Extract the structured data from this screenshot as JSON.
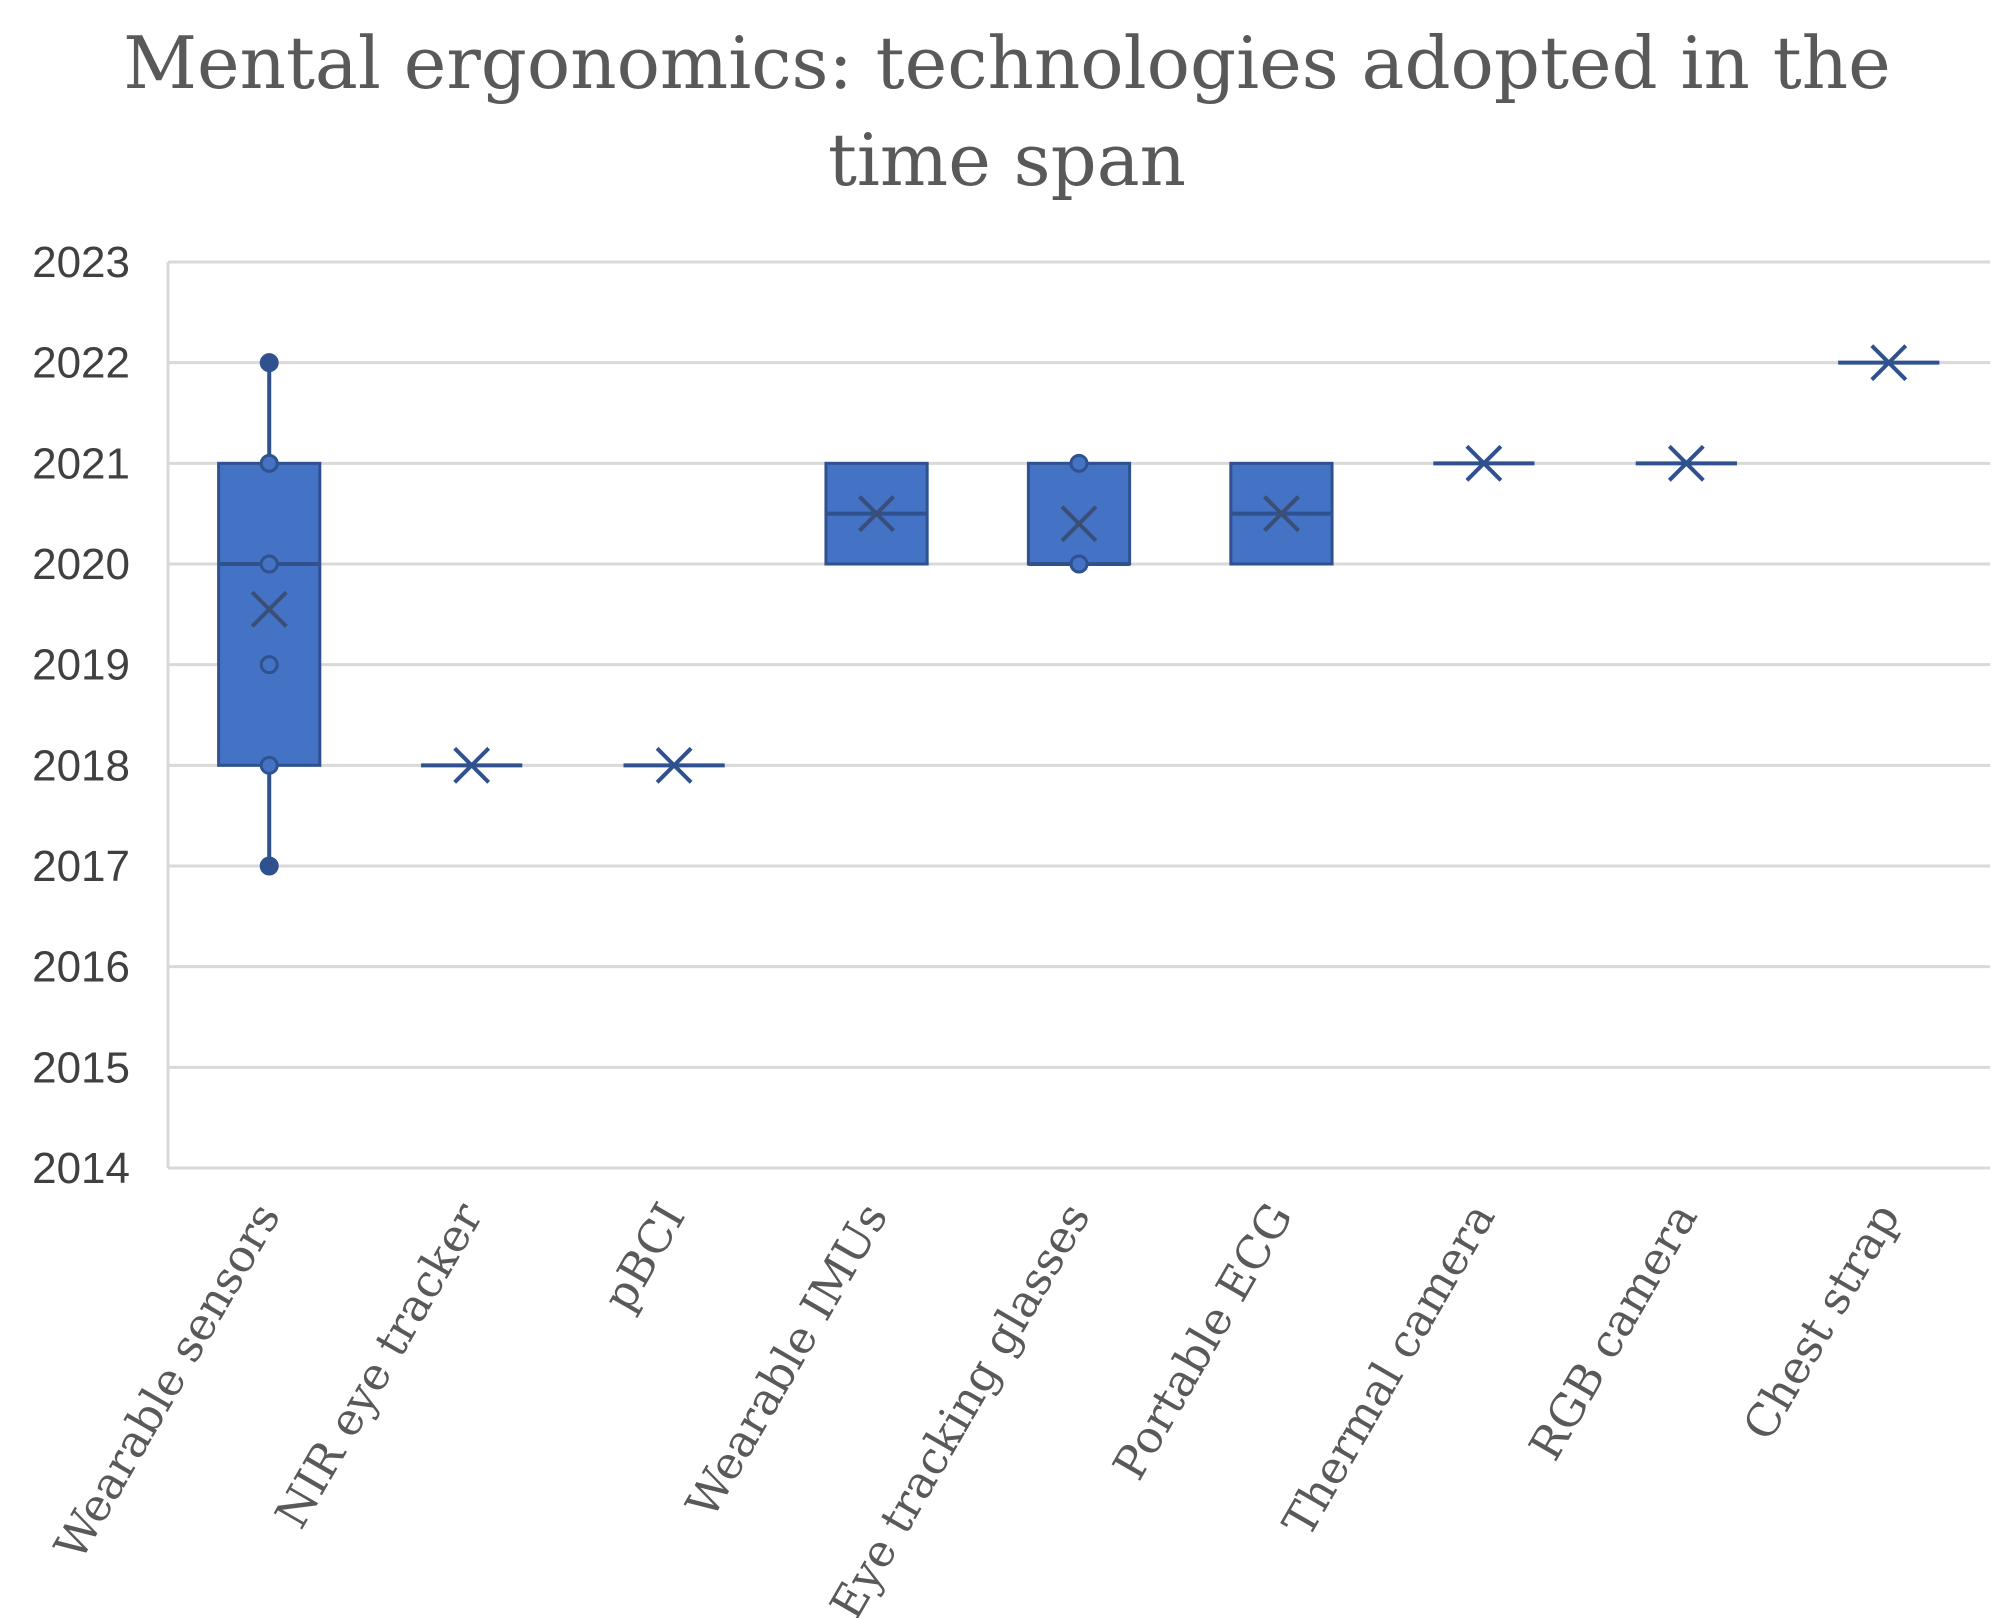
{
  "chart_data": {
    "type": "box",
    "title_lines": [
      "Mental ergonomics: technologies adopted in the",
      "time span"
    ],
    "xlabel": "",
    "ylabel": "",
    "ylim": [
      2014,
      2023
    ],
    "yticks": [
      "2014",
      "2015",
      "2016",
      "2017",
      "2018",
      "2019",
      "2020",
      "2021",
      "2022",
      "2023"
    ],
    "grid": true,
    "legend": "none",
    "color": "#4472c4",
    "edge_color": "#2f528f",
    "categories": [
      "Wearable sensors",
      "NIR eye tracker",
      "pBCI",
      "Wearable IMUs",
      "Eye tracking glasses",
      "Portable ECG",
      "Thermal camera",
      "RGB camera",
      "Chest strap"
    ],
    "boxes": [
      {
        "min": 2017,
        "q1": 2018,
        "median": 2020,
        "q3": 2021,
        "max": 2022,
        "mean": 2019.55,
        "points": [
          2017,
          2018,
          2019,
          2020,
          2021,
          2022
        ]
      },
      {
        "min": 2018,
        "q1": 2018,
        "median": 2018,
        "q3": 2018,
        "max": 2018,
        "mean": 2018,
        "points": []
      },
      {
        "min": 2018,
        "q1": 2018,
        "median": 2018,
        "q3": 2018,
        "max": 2018,
        "mean": 2018,
        "points": []
      },
      {
        "min": 2020,
        "q1": 2020,
        "median": 2020.5,
        "q3": 2021,
        "max": 2021,
        "mean": 2020.5,
        "points": []
      },
      {
        "min": 2020,
        "q1": 2020,
        "median": 2020,
        "q3": 2021,
        "max": 2021,
        "mean": 2020.4,
        "points": [
          2020,
          2021
        ]
      },
      {
        "min": 2020,
        "q1": 2020,
        "median": 2020.5,
        "q3": 2021,
        "max": 2021,
        "mean": 2020.5,
        "points": []
      },
      {
        "min": 2021,
        "q1": 2021,
        "median": 2021,
        "q3": 2021,
        "max": 2021,
        "mean": 2021,
        "points": []
      },
      {
        "min": 2021,
        "q1": 2021,
        "median": 2021,
        "q3": 2021,
        "max": 2021,
        "mean": 2021,
        "points": []
      },
      {
        "min": 2022,
        "q1": 2022,
        "median": 2022,
        "q3": 2022,
        "max": 2022,
        "mean": 2022,
        "points": []
      }
    ]
  }
}
